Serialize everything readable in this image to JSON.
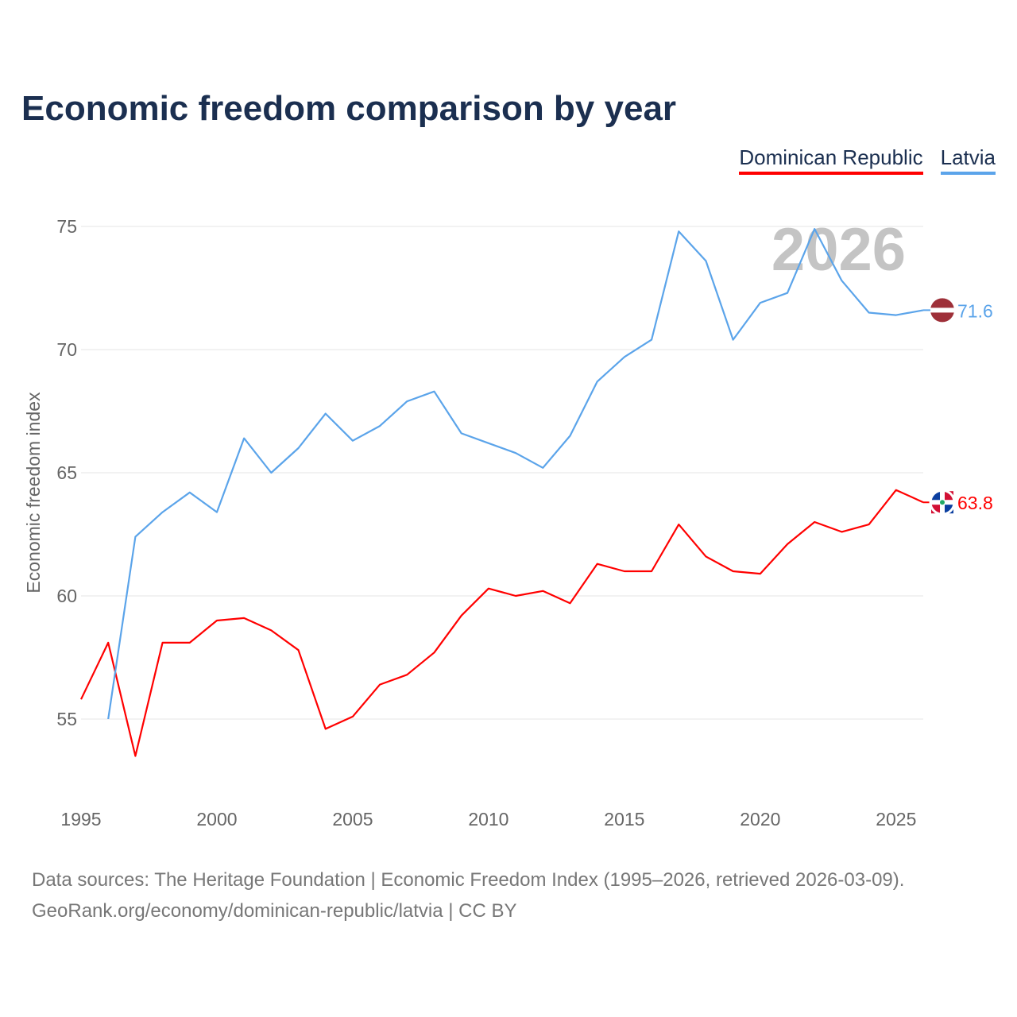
{
  "title": "Economic freedom comparison by year",
  "footer": {
    "line1": "Data sources: The Heritage Foundation | Economic Freedom Index (1995–2026, retrieved 2026-03-09).",
    "line2": "GeoRank.org/economy/dominican-republic/latvia | CC BY"
  },
  "chart_data": {
    "type": "line",
    "title": "Economic freedom comparison by year",
    "xlabel": "",
    "ylabel": "Economic freedom index",
    "xlim": [
      1995,
      2026
    ],
    "ylim": [
      51.5,
      77
    ],
    "xticks": [
      1995,
      2000,
      2005,
      2010,
      2015,
      2020,
      2025
    ],
    "yticks": [
      55,
      60,
      65,
      70,
      75
    ],
    "grid": true,
    "legend_position": "top-right",
    "year_watermark": "2026",
    "series": [
      {
        "name": "Dominican Republic",
        "color": "#ff0000",
        "flag": "dominican-republic-flag",
        "end_label": "63.8",
        "x": [
          1995,
          1996,
          1997,
          1998,
          1999,
          2000,
          2001,
          2002,
          2003,
          2004,
          2005,
          2006,
          2007,
          2008,
          2009,
          2010,
          2011,
          2012,
          2013,
          2014,
          2015,
          2016,
          2017,
          2018,
          2019,
          2020,
          2021,
          2022,
          2023,
          2024,
          2025,
          2026
        ],
        "values": [
          55.8,
          58.1,
          53.5,
          58.1,
          58.1,
          59.0,
          59.1,
          58.6,
          57.8,
          54.6,
          55.1,
          56.4,
          56.8,
          57.7,
          59.2,
          60.3,
          60.0,
          60.2,
          59.7,
          61.3,
          61.0,
          61.0,
          62.9,
          61.6,
          61.0,
          60.9,
          62.1,
          63.0,
          62.6,
          62.9,
          64.3,
          63.8
        ]
      },
      {
        "name": "Latvia",
        "color": "#5ba4ea",
        "flag": "latvia-flag",
        "end_label": "71.6",
        "x": [
          1996,
          1997,
          1998,
          1999,
          2000,
          2001,
          2002,
          2003,
          2004,
          2005,
          2006,
          2007,
          2008,
          2009,
          2010,
          2011,
          2012,
          2013,
          2014,
          2015,
          2016,
          2017,
          2018,
          2019,
          2020,
          2021,
          2022,
          2023,
          2024,
          2025,
          2026
        ],
        "values": [
          55.0,
          62.4,
          63.4,
          64.2,
          63.4,
          66.4,
          65.0,
          66.0,
          67.4,
          66.3,
          66.9,
          67.9,
          68.3,
          66.6,
          66.2,
          65.8,
          65.2,
          66.5,
          68.7,
          69.7,
          70.4,
          74.8,
          73.6,
          70.4,
          71.9,
          72.3,
          74.9,
          72.8,
          71.5,
          71.4,
          71.6
        ]
      }
    ]
  }
}
